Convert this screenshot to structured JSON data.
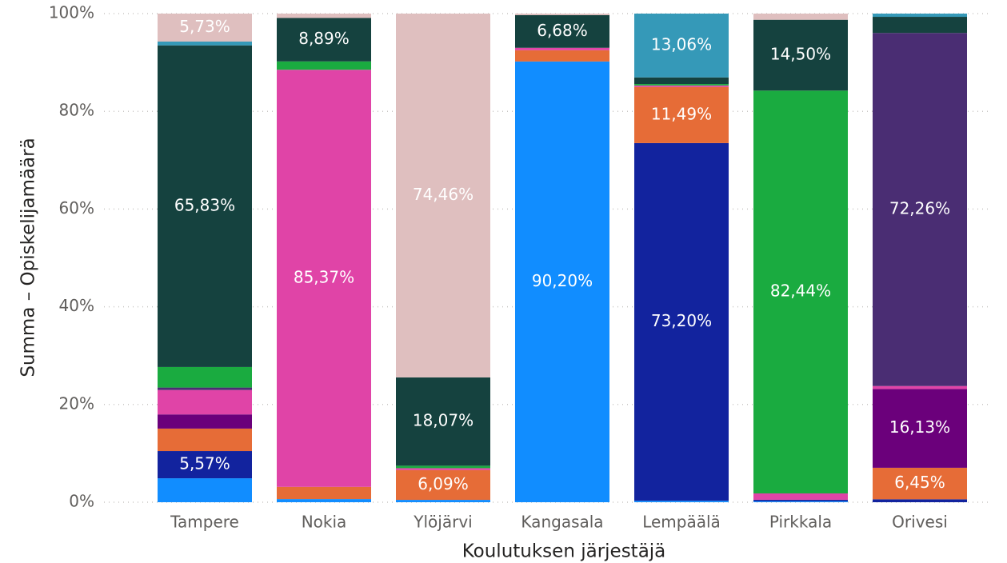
{
  "chart_data": {
    "type": "stacked_bar_100",
    "x_label": "Koulutuksen järjestäjä",
    "y_label": "Summa – Opiskelijamäärä",
    "categories": [
      "Tampere",
      "Nokia",
      "Ylöjärvi",
      "Kangasala",
      "Lempäälä",
      "Pirkkala",
      "Orivesi"
    ],
    "ylim": [
      0,
      100
    ],
    "yticks": [
      {
        "value": 0,
        "label": "0%"
      },
      {
        "value": 20,
        "label": "20%"
      },
      {
        "value": 40,
        "label": "40%"
      },
      {
        "value": 60,
        "label": "60%"
      },
      {
        "value": 80,
        "label": "80%"
      },
      {
        "value": 100,
        "label": "100%"
      }
    ],
    "grid": true,
    "series": [
      {
        "color": "#118dff",
        "values": [
          4.9,
          0.64,
          0.48,
          90.2,
          0.3,
          0.2,
          null
        ],
        "value_labels": [
          null,
          null,
          null,
          "90,20%",
          null,
          null,
          null
        ]
      },
      {
        "color": "#12239e",
        "values": [
          5.57,
          null,
          null,
          null,
          73.2,
          0.3,
          0.6
        ],
        "value_labels": [
          "5,57%",
          null,
          null,
          null,
          "73,20%",
          null,
          null
        ]
      },
      {
        "color": "#e66c37",
        "values": [
          4.6,
          2.5,
          6.09,
          2.3,
          11.49,
          null,
          6.45
        ],
        "value_labels": [
          null,
          null,
          "6,09%",
          null,
          "11,49%",
          null,
          "6,45%"
        ]
      },
      {
        "color": "#6b007b",
        "values": [
          2.9,
          null,
          null,
          null,
          null,
          null,
          16.13
        ],
        "value_labels": [
          null,
          null,
          null,
          null,
          null,
          null,
          "16,13%"
        ]
      },
      {
        "color": "#e044a7",
        "values": [
          5.0,
          85.37,
          0.4,
          0.5,
          0.3,
          1.3,
          0.6
        ],
        "value_labels": [
          null,
          "85,37%",
          null,
          null,
          null,
          null,
          null
        ]
      },
      {
        "color": "#4a2d73",
        "values": [
          0.5,
          null,
          null,
          null,
          null,
          null,
          72.26
        ],
        "value_labels": [
          null,
          null,
          null,
          null,
          null,
          null,
          "72,26%"
        ]
      },
      {
        "color": "#1aab40",
        "values": [
          4.2,
          1.7,
          0.5,
          null,
          0.3,
          82.44,
          null
        ],
        "value_labels": [
          null,
          null,
          null,
          null,
          null,
          "82,44%",
          null
        ]
      },
      {
        "color": "#15423f",
        "values": [
          65.83,
          8.89,
          18.07,
          6.68,
          1.35,
          14.5,
          3.3
        ],
        "value_labels": [
          "65,83%",
          "8,89%",
          "18,07%",
          "6,68%",
          null,
          "14,50%",
          null
        ]
      },
      {
        "color": "#3599b8",
        "values": [
          0.77,
          null,
          null,
          null,
          13.06,
          null,
          0.66
        ],
        "value_labels": [
          null,
          null,
          null,
          null,
          "13,06%",
          null,
          null
        ]
      },
      {
        "color": "#dfbfbf",
        "values": [
          5.73,
          0.9,
          74.46,
          0.32,
          null,
          1.26,
          null
        ],
        "value_labels": [
          "5,73%",
          null,
          "74,46%",
          null,
          null,
          null,
          null
        ]
      }
    ]
  }
}
